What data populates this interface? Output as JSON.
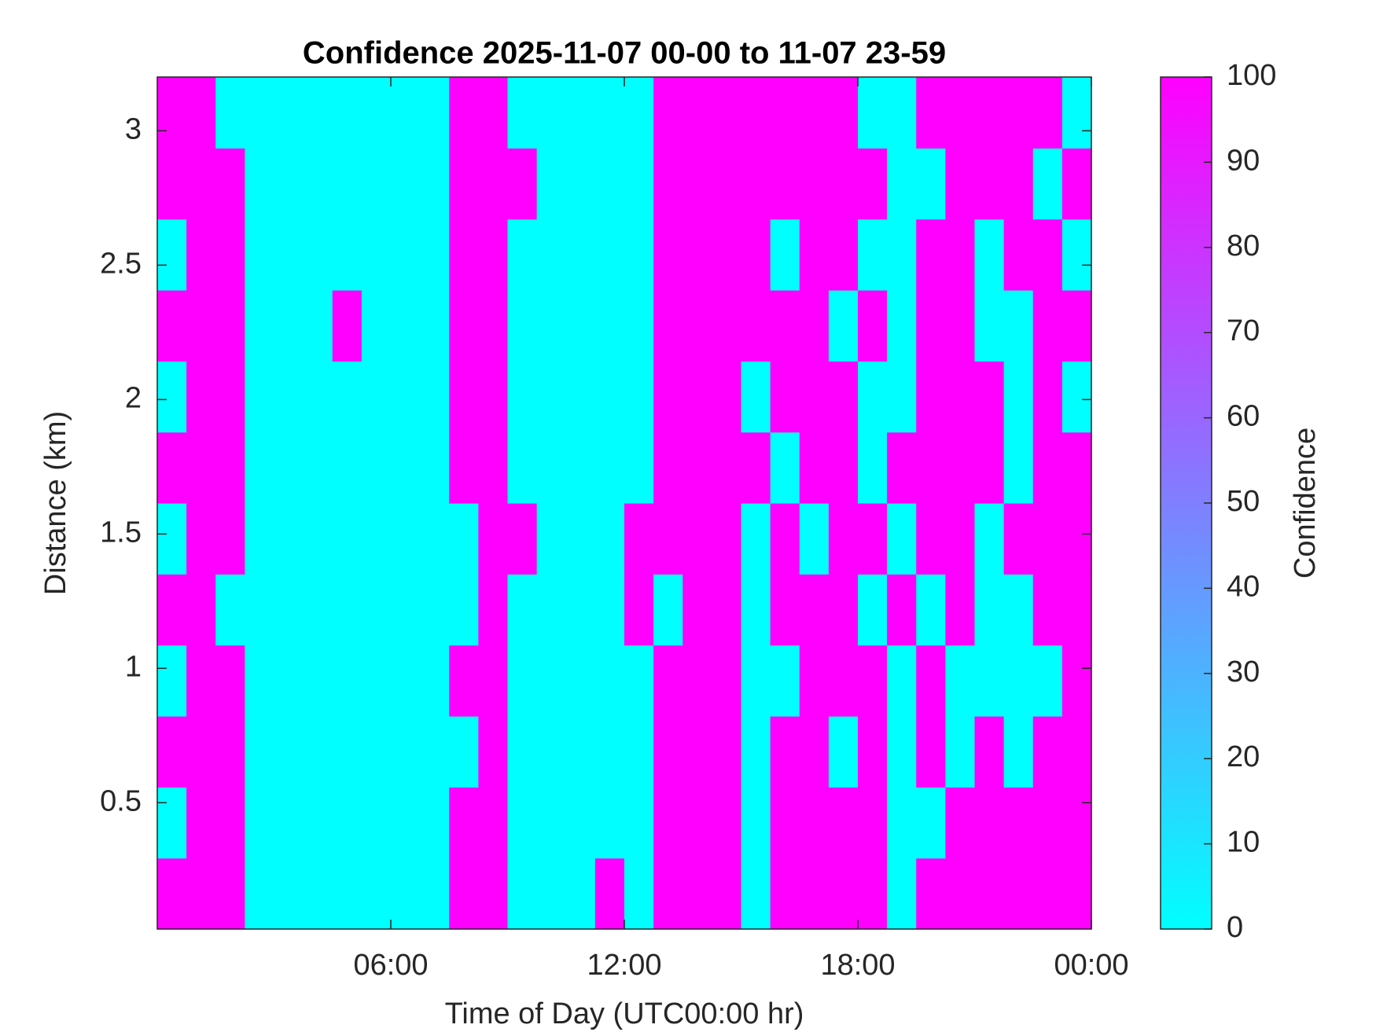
{
  "chart_data": {
    "type": "heatmap",
    "title": "Confidence 2025-11-07 00-00 to 11-07 23-59",
    "x_label": "Time of Day (UTC00:00 hr)",
    "y_label": "Distance (km)",
    "colorbar_label": "Confidence",
    "xlim": [
      0,
      24
    ],
    "xticks": [
      {
        "value": 6,
        "label": "06:00"
      },
      {
        "value": 12,
        "label": "12:00"
      },
      {
        "value": 18,
        "label": "18:00"
      },
      {
        "value": 24,
        "label": "00:00"
      }
    ],
    "ylim": [
      0.03,
      3.2
    ],
    "yticks": [
      0.5,
      1,
      1.5,
      2,
      2.5,
      3
    ],
    "clim": [
      0,
      100
    ],
    "cticks": [
      0,
      10,
      20,
      30,
      40,
      50,
      60,
      70,
      80,
      90,
      100
    ],
    "colormap": [
      "#00ffff",
      "#ff00ff"
    ],
    "z": [
      [
        100,
        100,
        100,
        0,
        0,
        0,
        0,
        0,
        0,
        0,
        100,
        100,
        0,
        0,
        0,
        100,
        0,
        100,
        100,
        100,
        0,
        100,
        100,
        100,
        100,
        0,
        100,
        100,
        100,
        100,
        100,
        100
      ],
      [
        0,
        100,
        100,
        0,
        0,
        0,
        0,
        0,
        0,
        0,
        100,
        100,
        0,
        0,
        0,
        0,
        0,
        100,
        100,
        100,
        0,
        100,
        100,
        100,
        100,
        0,
        0,
        100,
        100,
        100,
        100,
        100
      ],
      [
        100,
        100,
        100,
        0,
        0,
        0,
        0,
        0,
        0,
        0,
        0,
        100,
        0,
        0,
        0,
        0,
        0,
        100,
        100,
        100,
        0,
        100,
        100,
        0,
        100,
        0,
        100,
        0,
        100,
        0,
        100,
        100
      ],
      [
        0,
        100,
        100,
        0,
        0,
        0,
        0,
        0,
        0,
        0,
        100,
        100,
        0,
        0,
        0,
        0,
        0,
        100,
        100,
        100,
        0,
        0,
        100,
        100,
        100,
        0,
        100,
        0,
        0,
        0,
        0,
        100
      ],
      [
        100,
        100,
        0,
        0,
        0,
        0,
        0,
        0,
        0,
        0,
        0,
        100,
        0,
        0,
        0,
        0,
        100,
        0,
        100,
        100,
        0,
        100,
        100,
        100,
        0,
        100,
        0,
        100,
        0,
        0,
        100,
        100
      ],
      [
        0,
        100,
        100,
        0,
        0,
        0,
        0,
        0,
        0,
        0,
        0,
        100,
        100,
        0,
        0,
        0,
        100,
        100,
        100,
        100,
        0,
        100,
        0,
        100,
        100,
        0,
        100,
        100,
        0,
        100,
        100,
        100
      ],
      [
        100,
        100,
        100,
        0,
        0,
        0,
        0,
        0,
        0,
        0,
        100,
        100,
        0,
        0,
        0,
        0,
        0,
        100,
        100,
        100,
        100,
        0,
        100,
        100,
        0,
        100,
        100,
        100,
        100,
        0,
        100,
        100
      ],
      [
        0,
        100,
        100,
        0,
        0,
        0,
        0,
        0,
        0,
        0,
        100,
        100,
        0,
        0,
        0,
        0,
        0,
        100,
        100,
        100,
        0,
        100,
        100,
        100,
        0,
        0,
        100,
        100,
        100,
        0,
        100,
        0
      ],
      [
        100,
        100,
        100,
        0,
        0,
        0,
        100,
        0,
        0,
        0,
        100,
        100,
        0,
        0,
        0,
        0,
        0,
        100,
        100,
        100,
        100,
        100,
        100,
        0,
        100,
        0,
        100,
        100,
        0,
        0,
        100,
        100
      ],
      [
        0,
        100,
        100,
        0,
        0,
        0,
        0,
        0,
        0,
        0,
        100,
        100,
        0,
        0,
        0,
        0,
        0,
        100,
        100,
        100,
        100,
        0,
        100,
        100,
        0,
        0,
        100,
        100,
        0,
        100,
        100,
        0
      ],
      [
        100,
        100,
        100,
        0,
        0,
        0,
        0,
        0,
        0,
        0,
        100,
        100,
        100,
        0,
        0,
        0,
        0,
        100,
        100,
        100,
        100,
        100,
        100,
        100,
        100,
        0,
        0,
        100,
        100,
        100,
        0,
        100
      ],
      [
        100,
        100,
        0,
        0,
        0,
        0,
        0,
        0,
        0,
        0,
        100,
        100,
        0,
        0,
        0,
        0,
        0,
        100,
        100,
        100,
        100,
        100,
        100,
        100,
        0,
        0,
        100,
        100,
        100,
        100,
        100,
        0
      ]
    ]
  }
}
